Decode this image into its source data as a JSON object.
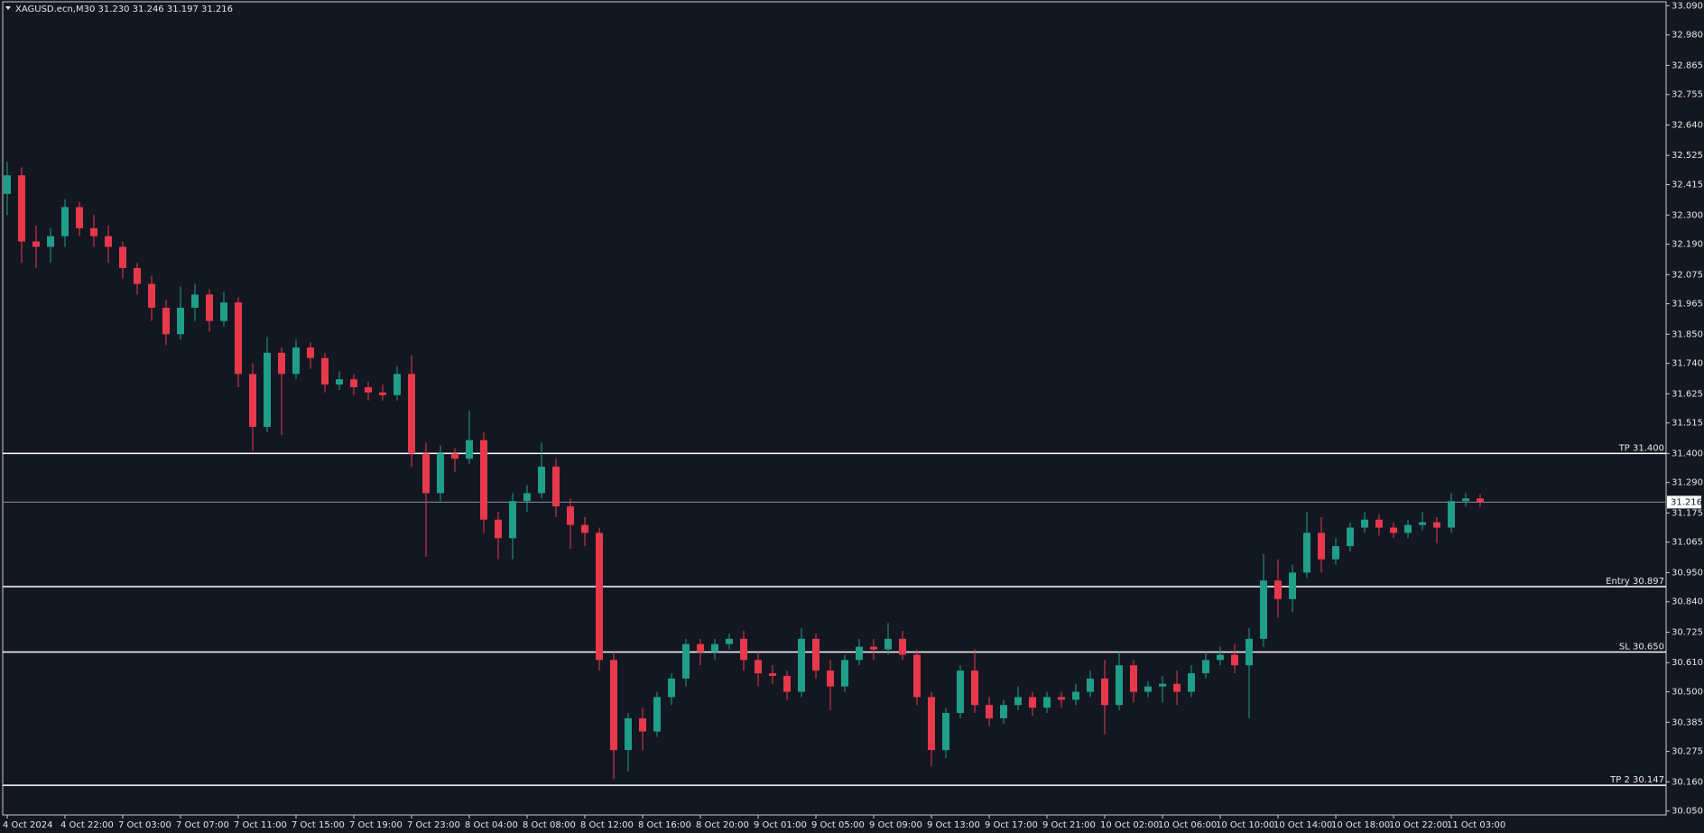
{
  "chart_data": {
    "type": "candlestick",
    "title": "XAGUSD.ecn,M30  31.230 31.246 31.197 31.216",
    "up_color": "#1f9e89",
    "down_color": "#e8394c",
    "background": "#131722",
    "ylim": [
      30.035,
      33.105
    ],
    "yticks": [
      {
        "value": 33.09,
        "label": "33.090"
      },
      {
        "value": 32.98,
        "label": "32.980"
      },
      32.865,
      32.755,
      {
        "value": 32.64,
        "label": "32.640"
      },
      32.525,
      32.415,
      {
        "value": 32.3,
        "label": "32.300"
      },
      {
        "value": 32.19,
        "label": "32.190"
      },
      32.075,
      31.965,
      {
        "value": 31.85,
        "label": "31.850"
      },
      {
        "value": 31.74,
        "label": "31.740"
      },
      31.625,
      31.515,
      {
        "value": 31.4,
        "label": "31.400"
      },
      {
        "value": 31.29,
        "label": "31.290"
      },
      31.175,
      31.065,
      {
        "value": 30.95,
        "label": "30.950"
      },
      {
        "value": 30.84,
        "label": "30.840"
      },
      30.725,
      {
        "value": 30.61,
        "label": "30.610"
      },
      {
        "value": 30.5,
        "label": "30.500"
      },
      30.385,
      30.275,
      {
        "value": 30.16,
        "label": "30.160"
      },
      {
        "value": 30.05,
        "label": "30.050"
      }
    ],
    "price": {
      "value": 31.216,
      "label": "31.216"
    },
    "levels": [
      {
        "label": "TP 31.400",
        "value": 31.4
      },
      {
        "label": "Entry 30.897",
        "value": 30.897
      },
      {
        "label": "SL 30.650",
        "value": 30.65
      },
      {
        "label": "TP 2 30.147",
        "value": 30.147
      }
    ],
    "categories": [
      "4 Oct 2024",
      null,
      null,
      null,
      "4 Oct 22:00",
      null,
      null,
      null,
      "7 Oct 03:00",
      null,
      null,
      null,
      "7 Oct 07:00",
      null,
      null,
      null,
      "7 Oct 11:00",
      null,
      null,
      null,
      "7 Oct 15:00",
      null,
      null,
      null,
      "7 Oct 19:00",
      null,
      null,
      null,
      "7 Oct 23:00",
      null,
      null,
      null,
      "8 Oct 04:00",
      null,
      null,
      null,
      "8 Oct 08:00",
      null,
      null,
      null,
      "8 Oct 12:00",
      null,
      null,
      null,
      "8 Oct 16:00",
      null,
      null,
      null,
      "8 Oct 20:00",
      null,
      null,
      null,
      "9 Oct 01:00",
      null,
      null,
      null,
      "9 Oct 05:00",
      null,
      null,
      null,
      "9 Oct 09:00",
      null,
      null,
      null,
      "9 Oct 13:00",
      null,
      null,
      null,
      "9 Oct 17:00",
      null,
      null,
      null,
      "9 Oct 21:00",
      null,
      null,
      null,
      "10 Oct 02:00",
      null,
      null,
      null,
      "10 Oct 06:00",
      null,
      null,
      null,
      "10 Oct 10:00",
      null,
      null,
      null,
      "10 Oct 14:00",
      null,
      null,
      null,
      "10 Oct 18:00",
      null,
      null,
      null,
      "10 Oct 22:00",
      null,
      null,
      null,
      "11 Oct 03:00",
      null,
      null
    ],
    "ohlc": [
      [
        32.38,
        32.5,
        32.3,
        32.45
      ],
      [
        32.45,
        32.48,
        32.12,
        32.2
      ],
      [
        32.2,
        32.26,
        32.1,
        32.18
      ],
      [
        32.18,
        32.25,
        32.12,
        32.22
      ],
      [
        32.22,
        32.36,
        32.18,
        32.33
      ],
      [
        32.33,
        32.35,
        32.22,
        32.25
      ],
      [
        32.25,
        32.3,
        32.18,
        32.22
      ],
      [
        32.22,
        32.26,
        32.12,
        32.18
      ],
      [
        32.18,
        32.2,
        32.06,
        32.1
      ],
      [
        32.1,
        32.12,
        32.0,
        32.04
      ],
      [
        32.04,
        32.07,
        31.9,
        31.95
      ],
      [
        31.95,
        31.98,
        31.81,
        31.85
      ],
      [
        31.85,
        32.03,
        31.83,
        31.95
      ],
      [
        31.95,
        32.04,
        31.9,
        32.0
      ],
      [
        32.0,
        32.02,
        31.86,
        31.9
      ],
      [
        31.9,
        32.01,
        31.88,
        31.97
      ],
      [
        31.97,
        31.99,
        31.65,
        31.7
      ],
      [
        31.7,
        31.74,
        31.41,
        31.5
      ],
      [
        31.5,
        31.84,
        31.48,
        31.78
      ],
      [
        31.78,
        31.8,
        31.47,
        31.7
      ],
      [
        31.7,
        31.83,
        31.68,
        31.8
      ],
      [
        31.8,
        31.82,
        31.72,
        31.76
      ],
      [
        31.76,
        31.78,
        31.63,
        31.66
      ],
      [
        31.66,
        31.71,
        31.64,
        31.68
      ],
      [
        31.68,
        31.7,
        31.62,
        31.65
      ],
      [
        31.65,
        31.67,
        31.6,
        31.63
      ],
      [
        31.63,
        31.66,
        31.6,
        31.62
      ],
      [
        31.62,
        31.73,
        31.6,
        31.7
      ],
      [
        31.7,
        31.77,
        31.35,
        31.4
      ],
      [
        31.4,
        31.44,
        31.01,
        31.25
      ],
      [
        31.25,
        31.43,
        31.22,
        31.4
      ],
      [
        31.4,
        31.42,
        31.33,
        31.38
      ],
      [
        31.38,
        31.56,
        31.36,
        31.45
      ],
      [
        31.45,
        31.48,
        31.1,
        31.15
      ],
      [
        31.15,
        31.18,
        31.0,
        31.08
      ],
      [
        31.08,
        31.25,
        31.0,
        31.22
      ],
      [
        31.22,
        31.28,
        31.18,
        31.25
      ],
      [
        31.25,
        31.44,
        31.23,
        31.35
      ],
      [
        31.35,
        31.38,
        31.16,
        31.2
      ],
      [
        31.2,
        31.23,
        31.04,
        31.13
      ],
      [
        31.13,
        31.16,
        31.05,
        31.1
      ],
      [
        31.1,
        31.12,
        30.58,
        30.62
      ],
      [
        30.62,
        30.65,
        30.17,
        30.28
      ],
      [
        30.28,
        30.42,
        30.2,
        30.4
      ],
      [
        30.4,
        30.44,
        30.28,
        30.35
      ],
      [
        30.35,
        30.5,
        30.33,
        30.48
      ],
      [
        30.48,
        30.57,
        30.45,
        30.55
      ],
      [
        30.55,
        30.7,
        30.52,
        30.68
      ],
      [
        30.68,
        30.7,
        30.6,
        30.65
      ],
      [
        30.65,
        30.7,
        30.62,
        30.68
      ],
      [
        30.68,
        30.72,
        30.66,
        30.7
      ],
      [
        30.7,
        30.73,
        30.58,
        30.62
      ],
      [
        30.62,
        30.65,
        30.52,
        30.57
      ],
      [
        30.57,
        30.6,
        30.53,
        30.56
      ],
      [
        30.56,
        30.58,
        30.47,
        30.5
      ],
      [
        30.5,
        30.74,
        30.48,
        30.7
      ],
      [
        30.7,
        30.72,
        30.55,
        30.58
      ],
      [
        30.58,
        30.62,
        30.43,
        30.52
      ],
      [
        30.52,
        30.64,
        30.5,
        30.62
      ],
      [
        30.62,
        30.7,
        30.6,
        30.67
      ],
      [
        30.67,
        30.7,
        30.62,
        30.66
      ],
      [
        30.66,
        30.76,
        30.64,
        30.7
      ],
      [
        30.7,
        30.73,
        30.62,
        30.64
      ],
      [
        30.64,
        30.66,
        30.45,
        30.48
      ],
      [
        30.48,
        30.5,
        30.22,
        30.28
      ],
      [
        30.28,
        30.44,
        30.25,
        30.42
      ],
      [
        30.42,
        30.6,
        30.4,
        30.58
      ],
      [
        30.58,
        30.66,
        30.42,
        30.45
      ],
      [
        30.45,
        30.48,
        30.37,
        30.4
      ],
      [
        30.4,
        30.47,
        30.38,
        30.45
      ],
      [
        30.45,
        30.52,
        30.43,
        30.48
      ],
      [
        30.48,
        30.5,
        30.41,
        30.44
      ],
      [
        30.44,
        30.5,
        30.42,
        30.48
      ],
      [
        30.48,
        30.5,
        30.44,
        30.47
      ],
      [
        30.47,
        30.53,
        30.45,
        30.5
      ],
      [
        30.5,
        30.58,
        30.48,
        30.55
      ],
      [
        30.55,
        30.62,
        30.34,
        30.45
      ],
      [
        30.45,
        30.65,
        30.43,
        30.6
      ],
      [
        30.6,
        30.62,
        30.46,
        30.5
      ],
      [
        30.5,
        30.54,
        30.48,
        30.52
      ],
      [
        30.52,
        30.56,
        30.46,
        30.53
      ],
      [
        30.53,
        30.58,
        30.45,
        30.5
      ],
      [
        30.5,
        30.6,
        30.48,
        30.57
      ],
      [
        30.57,
        30.65,
        30.55,
        30.62
      ],
      [
        30.62,
        30.67,
        30.6,
        30.64
      ],
      [
        30.64,
        30.68,
        30.57,
        30.6
      ],
      [
        30.6,
        30.74,
        30.4,
        30.7
      ],
      [
        30.7,
        31.02,
        30.67,
        30.92
      ],
      [
        30.92,
        31.0,
        30.78,
        30.85
      ],
      [
        30.85,
        30.98,
        30.8,
        30.95
      ],
      [
        30.95,
        31.18,
        30.93,
        31.1
      ],
      [
        31.1,
        31.16,
        30.95,
        31.0
      ],
      [
        31.0,
        31.08,
        30.98,
        31.05
      ],
      [
        31.05,
        31.14,
        31.03,
        31.12
      ],
      [
        31.12,
        31.18,
        31.1,
        31.15
      ],
      [
        31.15,
        31.17,
        31.09,
        31.12
      ],
      [
        31.12,
        31.14,
        31.08,
        31.1
      ],
      [
        31.1,
        31.15,
        31.08,
        31.13
      ],
      [
        31.13,
        31.18,
        31.11,
        31.14
      ],
      [
        31.14,
        31.16,
        31.06,
        31.12
      ],
      [
        31.12,
        31.25,
        31.1,
        31.22
      ],
      [
        31.22,
        31.25,
        31.2,
        31.23
      ],
      [
        31.23,
        31.246,
        31.197,
        31.216
      ]
    ]
  }
}
